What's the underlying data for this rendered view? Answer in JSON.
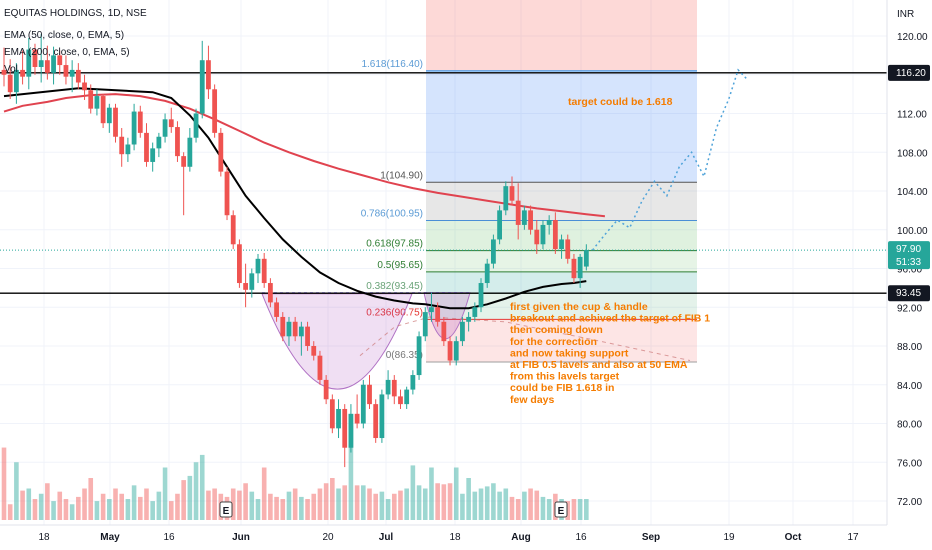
{
  "header": {
    "symbol_line": "EQUITAS HOLDINGS, 1D, NSE",
    "ema50_line": "EMA (50, close, 0, EMA, 5)",
    "ema200_line": "EMA (200, close, 0, EMA, 5)",
    "vol_line": "Vol"
  },
  "price_axis": {
    "currency": "INR",
    "ticks": [
      "120.00",
      "116.00",
      "112.00",
      "108.00",
      "104.00",
      "100.00",
      "96.00",
      "92.00",
      "88.00",
      "84.00",
      "80.00",
      "76.00",
      "72.00"
    ]
  },
  "badges": {
    "level_high": "116.20",
    "current_price": "97.90",
    "countdown": "51:33",
    "level_low": "93.45"
  },
  "colors": {
    "up": "#26a69a",
    "down": "#ef5350",
    "ema50": "#000000",
    "ema200": "#e0434f",
    "fib_label": "#5b9bd5",
    "annotation": "#f57c00",
    "badge_dark": "#131722",
    "badge_green": "#26a69a"
  },
  "fib_labels": [
    "1.618(116.40)",
    "1(104.90)",
    "0.786(100.95)",
    "0.618(97.85)",
    "0.5(95.65)",
    "0.382(93.45)",
    "0.236(90.75)",
    "0(86.35)"
  ],
  "annotations": {
    "target": "target could be 1.618",
    "note_lines": [
      "first given the cup & handle",
      "breakout and achived the target of FIB 1",
      "then coming down",
      " for the correction",
      " and now taking support",
      "  at FIB 0.5 lavels and also at 50 EMA",
      "from this lavels target",
      "could be FIB 1.618 in",
      "few days"
    ]
  },
  "earnings_markers": [
    "E",
    "E"
  ],
  "chart_data": {
    "type": "candlestick",
    "title": "EQUITAS HOLDINGS, 1D, NSE",
    "indicators": [
      "EMA (50, close, 0, EMA, 5)",
      "EMA (200, close, 0, EMA, 5)",
      "Vol"
    ],
    "x_tick_labels": [
      "18",
      "May",
      "16",
      "Jun",
      "20",
      "Jul",
      "18",
      "Aug",
      "16",
      "Sep",
      "19",
      "Oct",
      "17"
    ],
    "ylim": [
      70.5,
      122.5
    ],
    "horizontal_levels": [
      116.2,
      93.45
    ],
    "current_price": 97.9,
    "fibonacci": {
      "levels": [
        {
          "ratio": 1.618,
          "price": 116.4
        },
        {
          "ratio": 1,
          "price": 104.9
        },
        {
          "ratio": 0.786,
          "price": 100.95
        },
        {
          "ratio": 0.618,
          "price": 97.85
        },
        {
          "ratio": 0.5,
          "price": 95.65
        },
        {
          "ratio": 0.382,
          "price": 93.45
        },
        {
          "ratio": 0.236,
          "price": 90.75
        },
        {
          "ratio": 0,
          "price": 86.35
        }
      ]
    },
    "candles": [
      {
        "o": 116.5,
        "h": 118.8,
        "l": 114.8,
        "c": 116.0
      },
      {
        "o": 116.0,
        "h": 117.6,
        "l": 113.5,
        "c": 114.2
      },
      {
        "o": 114.2,
        "h": 117.2,
        "l": 113.0,
        "c": 116.5
      },
      {
        "o": 116.5,
        "h": 118.5,
        "l": 115.0,
        "c": 115.8
      },
      {
        "o": 115.8,
        "h": 119.8,
        "l": 114.5,
        "c": 118.6
      },
      {
        "o": 118.6,
        "h": 119.2,
        "l": 116.0,
        "c": 116.8
      },
      {
        "o": 116.8,
        "h": 120.2,
        "l": 115.2,
        "c": 117.5
      },
      {
        "o": 117.5,
        "h": 119.0,
        "l": 115.5,
        "c": 116.2
      },
      {
        "o": 116.2,
        "h": 118.9,
        "l": 115.0,
        "c": 118.0
      },
      {
        "o": 118.0,
        "h": 118.5,
        "l": 116.0,
        "c": 117.0
      },
      {
        "o": 117.0,
        "h": 118.0,
        "l": 115.0,
        "c": 115.8
      },
      {
        "o": 115.8,
        "h": 117.5,
        "l": 114.2,
        "c": 116.5
      },
      {
        "o": 116.5,
        "h": 117.2,
        "l": 114.5,
        "c": 115.2
      },
      {
        "o": 115.2,
        "h": 116.0,
        "l": 113.4,
        "c": 114.4
      },
      {
        "o": 114.4,
        "h": 115.0,
        "l": 112.0,
        "c": 112.5
      },
      {
        "o": 112.5,
        "h": 114.5,
        "l": 111.8,
        "c": 113.8
      },
      {
        "o": 113.8,
        "h": 114.0,
        "l": 110.5,
        "c": 111.0
      },
      {
        "o": 111.0,
        "h": 113.0,
        "l": 110.0,
        "c": 112.6
      },
      {
        "o": 112.6,
        "h": 113.0,
        "l": 109.0,
        "c": 109.6
      },
      {
        "o": 109.6,
        "h": 110.5,
        "l": 106.5,
        "c": 107.8
      },
      {
        "o": 107.8,
        "h": 109.5,
        "l": 107.0,
        "c": 108.8
      },
      {
        "o": 108.8,
        "h": 113.0,
        "l": 108.2,
        "c": 112.2
      },
      {
        "o": 112.2,
        "h": 112.8,
        "l": 109.5,
        "c": 110.0
      },
      {
        "o": 110.0,
        "h": 111.0,
        "l": 106.5,
        "c": 107.0
      },
      {
        "o": 107.0,
        "h": 109.0,
        "l": 106.0,
        "c": 108.4
      },
      {
        "o": 108.4,
        "h": 110.0,
        "l": 107.5,
        "c": 109.6
      },
      {
        "o": 109.6,
        "h": 112.0,
        "l": 109.0,
        "c": 111.4
      },
      {
        "o": 111.4,
        "h": 112.6,
        "l": 110.0,
        "c": 110.6
      },
      {
        "o": 110.6,
        "h": 111.2,
        "l": 107.0,
        "c": 107.6
      },
      {
        "o": 107.6,
        "h": 108.0,
        "l": 101.5,
        "c": 106.5
      },
      {
        "o": 106.5,
        "h": 110.5,
        "l": 106.0,
        "c": 109.5
      },
      {
        "o": 109.5,
        "h": 112.5,
        "l": 109.0,
        "c": 112.0
      },
      {
        "o": 112.0,
        "h": 119.5,
        "l": 111.5,
        "c": 117.5
      },
      {
        "o": 117.5,
        "h": 119.0,
        "l": 113.5,
        "c": 114.5
      },
      {
        "o": 114.5,
        "h": 115.0,
        "l": 109.5,
        "c": 110.0
      },
      {
        "o": 110.0,
        "h": 110.5,
        "l": 105.5,
        "c": 106.0
      },
      {
        "o": 106.0,
        "h": 106.5,
        "l": 101.0,
        "c": 101.5
      },
      {
        "o": 101.5,
        "h": 102.0,
        "l": 98.0,
        "c": 98.5
      },
      {
        "o": 98.5,
        "h": 99.0,
        "l": 94.0,
        "c": 94.5
      },
      {
        "o": 94.5,
        "h": 96.5,
        "l": 92.0,
        "c": 93.8
      },
      {
        "o": 93.8,
        "h": 96.0,
        "l": 93.0,
        "c": 95.5
      },
      {
        "o": 95.5,
        "h": 97.5,
        "l": 94.5,
        "c": 97.0
      },
      {
        "o": 97.0,
        "h": 97.6,
        "l": 94.0,
        "c": 94.5
      },
      {
        "o": 94.5,
        "h": 95.0,
        "l": 92.0,
        "c": 92.5
      },
      {
        "o": 92.5,
        "h": 93.0,
        "l": 90.5,
        "c": 91.0
      },
      {
        "o": 91.0,
        "h": 91.5,
        "l": 88.5,
        "c": 89.0
      },
      {
        "o": 89.0,
        "h": 91.0,
        "l": 88.0,
        "c": 90.5
      },
      {
        "o": 90.5,
        "h": 91.0,
        "l": 88.5,
        "c": 89.0
      },
      {
        "o": 89.0,
        "h": 90.5,
        "l": 87.0,
        "c": 90.0
      },
      {
        "o": 90.0,
        "h": 90.5,
        "l": 87.5,
        "c": 88.0
      },
      {
        "o": 88.0,
        "h": 88.5,
        "l": 86.5,
        "c": 87.0
      },
      {
        "o": 87.0,
        "h": 87.5,
        "l": 84.0,
        "c": 84.5
      },
      {
        "o": 84.5,
        "h": 85.0,
        "l": 82.0,
        "c": 82.5
      },
      {
        "o": 82.5,
        "h": 83.0,
        "l": 79.0,
        "c": 79.5
      },
      {
        "o": 79.5,
        "h": 82.5,
        "l": 78.5,
        "c": 81.5
      },
      {
        "o": 81.5,
        "h": 82.0,
        "l": 75.5,
        "c": 77.5
      },
      {
        "o": 77.5,
        "h": 82.0,
        "l": 77.0,
        "c": 81.0
      },
      {
        "o": 81.0,
        "h": 83.0,
        "l": 79.5,
        "c": 80.0
      },
      {
        "o": 80.0,
        "h": 84.5,
        "l": 79.5,
        "c": 84.0
      },
      {
        "o": 84.0,
        "h": 85.0,
        "l": 81.5,
        "c": 82.0
      },
      {
        "o": 82.0,
        "h": 82.5,
        "l": 78.0,
        "c": 78.5
      },
      {
        "o": 78.5,
        "h": 83.5,
        "l": 78.0,
        "c": 83.0
      },
      {
        "o": 83.0,
        "h": 85.5,
        "l": 82.5,
        "c": 84.5
      },
      {
        "o": 84.5,
        "h": 85.0,
        "l": 82.0,
        "c": 82.8
      },
      {
        "o": 82.8,
        "h": 83.5,
        "l": 81.5,
        "c": 82.0
      },
      {
        "o": 82.0,
        "h": 83.8,
        "l": 81.5,
        "c": 83.5
      },
      {
        "o": 83.5,
        "h": 85.5,
        "l": 83.0,
        "c": 85.0
      },
      {
        "o": 85.0,
        "h": 89.5,
        "l": 84.5,
        "c": 89.0
      },
      {
        "o": 89.0,
        "h": 92.0,
        "l": 88.5,
        "c": 91.5
      },
      {
        "o": 91.5,
        "h": 93.5,
        "l": 90.5,
        "c": 92.0
      },
      {
        "o": 92.0,
        "h": 92.5,
        "l": 90.0,
        "c": 90.5
      },
      {
        "o": 90.5,
        "h": 91.0,
        "l": 88.0,
        "c": 88.5
      },
      {
        "o": 88.5,
        "h": 89.0,
        "l": 86.0,
        "c": 86.5
      },
      {
        "o": 86.5,
        "h": 89.0,
        "l": 86.0,
        "c": 88.5
      },
      {
        "o": 88.5,
        "h": 91.0,
        "l": 88.0,
        "c": 90.5
      },
      {
        "o": 90.5,
        "h": 91.5,
        "l": 89.5,
        "c": 91.0
      },
      {
        "o": 91.0,
        "h": 92.5,
        "l": 90.5,
        "c": 92.0
      },
      {
        "o": 92.0,
        "h": 95.0,
        "l": 91.5,
        "c": 94.5
      },
      {
        "o": 94.5,
        "h": 97.0,
        "l": 94.0,
        "c": 96.5
      },
      {
        "o": 96.5,
        "h": 99.5,
        "l": 96.0,
        "c": 99.0
      },
      {
        "o": 99.0,
        "h": 102.5,
        "l": 98.5,
        "c": 102.0
      },
      {
        "o": 102.0,
        "h": 105.0,
        "l": 101.5,
        "c": 104.5
      },
      {
        "o": 104.5,
        "h": 105.5,
        "l": 102.5,
        "c": 103.0
      },
      {
        "o": 103.0,
        "h": 104.8,
        "l": 99.0,
        "c": 100.5
      },
      {
        "o": 100.5,
        "h": 102.5,
        "l": 100.0,
        "c": 102.0
      },
      {
        "o": 102.0,
        "h": 102.5,
        "l": 99.5,
        "c": 100.0
      },
      {
        "o": 100.0,
        "h": 101.0,
        "l": 97.5,
        "c": 98.5
      },
      {
        "o": 98.5,
        "h": 101.0,
        "l": 98.0,
        "c": 100.5
      },
      {
        "o": 100.5,
        "h": 101.5,
        "l": 99.5,
        "c": 101.0
      },
      {
        "o": 101.0,
        "h": 101.8,
        "l": 97.5,
        "c": 98.0
      },
      {
        "o": 98.0,
        "h": 99.5,
        "l": 97.0,
        "c": 99.0
      },
      {
        "o": 99.0,
        "h": 99.5,
        "l": 96.5,
        "c": 97.0
      },
      {
        "o": 97.0,
        "h": 97.5,
        "l": 94.5,
        "c": 95.0
      },
      {
        "o": 95.0,
        "h": 97.5,
        "l": 94.0,
        "c": 97.2
      },
      {
        "o": 96.2,
        "h": 98.5,
        "l": 95.8,
        "c": 97.9
      }
    ],
    "ema50": [
      [
        0,
        113.8
      ],
      [
        12,
        114.6
      ],
      [
        24,
        114.2
      ],
      [
        27,
        113.6
      ],
      [
        30,
        111.8
      ],
      [
        33,
        109.5
      ],
      [
        36,
        106.5
      ],
      [
        39,
        103.5
      ],
      [
        42,
        101.2
      ],
      [
        45,
        99.0
      ],
      [
        48,
        97.2
      ],
      [
        51,
        95.6
      ],
      [
        54,
        94.5
      ],
      [
        57,
        93.7
      ],
      [
        60,
        93.1
      ],
      [
        63,
        92.7
      ],
      [
        66,
        92.4
      ],
      [
        68,
        92.3
      ],
      [
        72,
        91.9
      ],
      [
        75,
        91.9
      ],
      [
        78,
        92.3
      ],
      [
        81,
        92.9
      ],
      [
        84,
        93.6
      ],
      [
        87,
        94.1
      ],
      [
        90,
        94.4
      ],
      [
        92,
        94.5
      ],
      [
        94,
        94.7
      ]
    ],
    "ema200": [
      [
        0,
        112.2
      ],
      [
        3,
        112.8
      ],
      [
        7,
        113.2
      ],
      [
        10,
        113.6
      ],
      [
        14,
        113.9
      ],
      [
        18,
        114.0
      ],
      [
        22,
        113.8
      ],
      [
        26,
        113.3
      ],
      [
        30,
        112.5
      ],
      [
        34,
        111.4
      ],
      [
        38,
        110.2
      ],
      [
        42,
        109.0
      ],
      [
        46,
        108.0
      ],
      [
        50,
        107.1
      ],
      [
        54,
        106.3
      ],
      [
        58,
        105.6
      ],
      [
        62,
        104.9
      ],
      [
        66,
        104.3
      ],
      [
        70,
        103.8
      ],
      [
        74,
        103.4
      ],
      [
        78,
        103.0
      ],
      [
        82,
        102.6
      ],
      [
        86,
        102.2
      ],
      [
        90,
        101.9
      ],
      [
        94,
        101.6
      ],
      [
        97,
        101.4
      ]
    ],
    "volume": [
      0.69,
      0.15,
      0.55,
      0.28,
      0.3,
      0.2,
      0.25,
      0.35,
      0.18,
      0.27,
      0.2,
      0.15,
      0.22,
      0.3,
      0.4,
      0.18,
      0.25,
      0.2,
      0.3,
      0.25,
      0.2,
      0.33,
      0.22,
      0.3,
      0.18,
      0.27,
      0.5,
      0.18,
      0.25,
      0.38,
      0.42,
      0.55,
      0.62,
      0.28,
      0.3,
      0.25,
      0.22,
      0.3,
      0.28,
      0.35,
      0.27,
      0.2,
      0.5,
      0.25,
      0.22,
      0.2,
      0.27,
      0.3,
      0.22,
      0.2,
      0.25,
      0.3,
      0.35,
      0.4,
      0.3,
      0.33,
      0.9,
      0.33,
      0.33,
      0.3,
      0.25,
      0.27,
      0.2,
      0.25,
      0.28,
      0.3,
      0.52,
      0.33,
      0.3,
      0.5,
      0.35,
      0.34,
      0.35,
      0.5,
      0.25,
      0.4,
      0.27,
      0.3,
      0.32,
      0.35,
      0.27,
      0.3,
      0.22,
      0.2,
      0.27,
      0.3,
      0.28,
      0.22,
      0.2,
      0.25,
      0.2,
      0.18,
      0.2,
      0.2,
      0.2
    ],
    "projection_path": [
      [
        95,
        97.9
      ],
      [
        97,
        99.5
      ],
      [
        99,
        101.0
      ],
      [
        101,
        100.2
      ],
      [
        103,
        103.0
      ],
      [
        105,
        105.0
      ],
      [
        107,
        103.5
      ],
      [
        109,
        106.5
      ],
      [
        111,
        108.0
      ],
      [
        113,
        105.5
      ],
      [
        115,
        110.5
      ],
      [
        117,
        113.5
      ],
      [
        118.5,
        116.5
      ],
      [
        120,
        115.5
      ]
    ]
  }
}
